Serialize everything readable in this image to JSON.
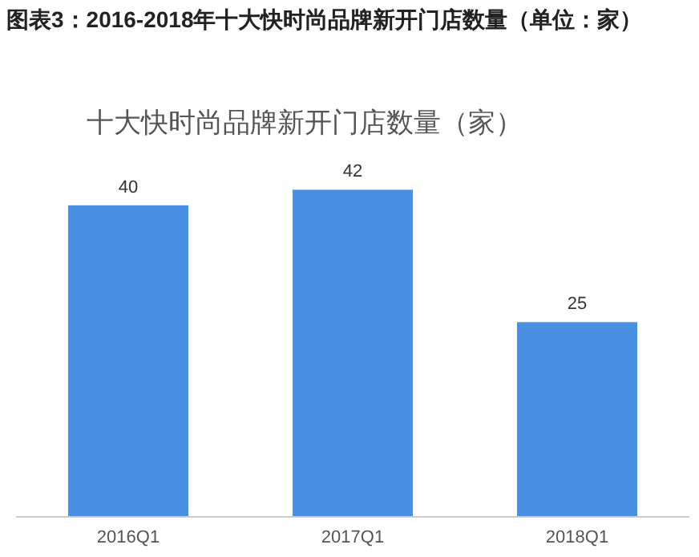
{
  "chart_data": {
    "type": "bar",
    "subtitle": "图表3：2016-2018年十大快时尚品牌新开门店数量（单位：家）",
    "title": "十大快时尚品牌新开门店数量（家）",
    "categories": [
      "2016Q1",
      "2017Q1",
      "2018Q1"
    ],
    "values": [
      40,
      42,
      25
    ],
    "color": "#4a90e2",
    "data_labels": true
  }
}
